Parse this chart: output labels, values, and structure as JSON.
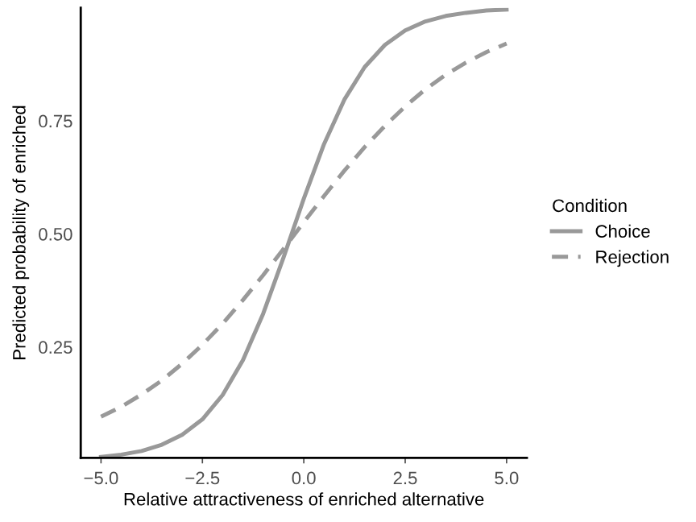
{
  "chart_data": {
    "type": "line",
    "xlabel": "Relative attractiveness of enriched alternative",
    "ylabel": "Predicted probability of enriched",
    "legend_title": "Condition",
    "x": [
      -5,
      -4.5,
      -4,
      -3.5,
      -3,
      -2.5,
      -2,
      -1.5,
      -1,
      -0.5,
      0,
      0.5,
      1,
      1.5,
      2,
      2.5,
      3,
      3.5,
      4,
      4.5,
      5
    ],
    "series": [
      {
        "name": "Choice",
        "color": "#999999",
        "line_style": "solid",
        "values": [
          0.007,
          0.012,
          0.02,
          0.034,
          0.056,
          0.09,
          0.144,
          0.221,
          0.324,
          0.448,
          0.578,
          0.699,
          0.797,
          0.869,
          0.918,
          0.95,
          0.97,
          0.982,
          0.989,
          0.994,
          0.996
        ]
      },
      {
        "name": "Rejection",
        "color": "#999999",
        "line_style": "dashed",
        "values": [
          0.096,
          0.118,
          0.145,
          0.176,
          0.213,
          0.255,
          0.302,
          0.354,
          0.409,
          0.467,
          0.526,
          0.584,
          0.64,
          0.692,
          0.739,
          0.782,
          0.82,
          0.852,
          0.879,
          0.902,
          0.921
        ]
      }
    ],
    "xlim": [
      -5.5,
      5.5
    ],
    "ylim": [
      0.005,
      1.0
    ],
    "xticks": [
      {
        "value": -5,
        "label": "−5.0"
      },
      {
        "value": -2.5,
        "label": "−2.5"
      },
      {
        "value": 0,
        "label": "0.0"
      },
      {
        "value": 2.5,
        "label": "2.5"
      },
      {
        "value": 5,
        "label": "5.0"
      }
    ],
    "yticks": [
      {
        "value": 0.25,
        "label": "0.25"
      },
      {
        "value": 0.5,
        "label": "0.50"
      },
      {
        "value": 0.75,
        "label": "0.75"
      }
    ],
    "grid": false,
    "legend": "right",
    "marker": "none"
  }
}
